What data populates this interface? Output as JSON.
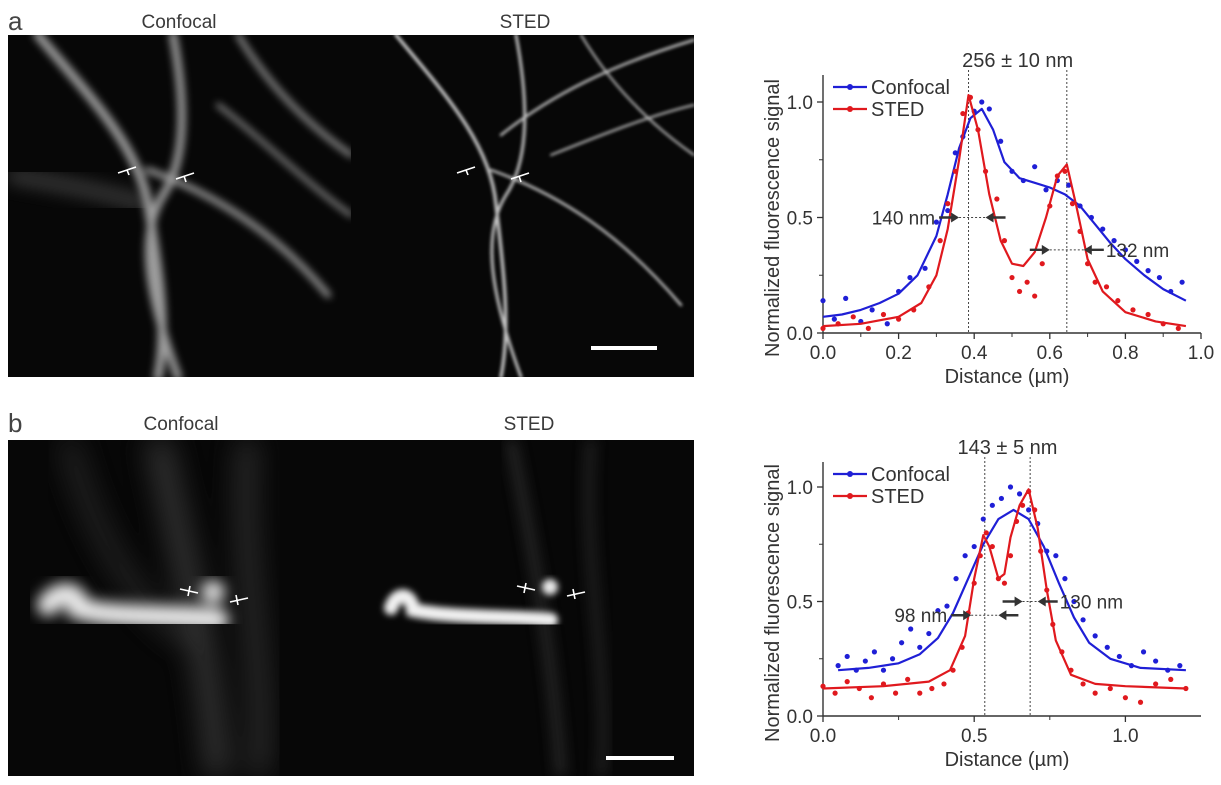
{
  "figure": {
    "panels": [
      {
        "letter": "a",
        "left_title": "Confocal",
        "right_title": "STED"
      },
      {
        "letter": "b",
        "left_title": "Confocal",
        "right_title": "STED"
      }
    ]
  },
  "chart_data": [
    {
      "type": "line",
      "panel": "a",
      "xlabel": "Distance (µm)",
      "ylabel": "Normalized fluorescence signal",
      "xlim": [
        0.0,
        1.0
      ],
      "ylim": [
        0.0,
        1.08
      ],
      "xticks": [
        "0.0",
        "0.2",
        "0.4",
        "0.6",
        "0.8",
        "1.0"
      ],
      "xtick_values": [
        0.0,
        0.2,
        0.4,
        0.6,
        0.8,
        1.0
      ],
      "yticks": [
        "0.0",
        "0.5",
        "1.0"
      ],
      "ytick_values": [
        0.0,
        0.5,
        1.0
      ],
      "legend_position": "top-left",
      "series": [
        {
          "name": "Confocal",
          "color": "#1f1fd6",
          "fit_x": [
            0.0,
            0.05,
            0.1,
            0.15,
            0.2,
            0.25,
            0.3,
            0.33,
            0.36,
            0.39,
            0.42,
            0.45,
            0.48,
            0.52,
            0.56,
            0.6,
            0.64,
            0.68,
            0.72,
            0.76,
            0.8,
            0.85,
            0.9,
            0.96
          ],
          "fit_y": [
            0.07,
            0.08,
            0.1,
            0.13,
            0.17,
            0.25,
            0.42,
            0.6,
            0.8,
            0.93,
            0.97,
            0.88,
            0.74,
            0.67,
            0.65,
            0.63,
            0.6,
            0.55,
            0.47,
            0.39,
            0.32,
            0.25,
            0.19,
            0.14
          ],
          "points_x": [
            0.0,
            0.03,
            0.06,
            0.1,
            0.13,
            0.17,
            0.2,
            0.23,
            0.27,
            0.3,
            0.33,
            0.35,
            0.37,
            0.4,
            0.42,
            0.44,
            0.47,
            0.5,
            0.53,
            0.56,
            0.59,
            0.62,
            0.65,
            0.68,
            0.71,
            0.74,
            0.77,
            0.8,
            0.83,
            0.86,
            0.89,
            0.92,
            0.95
          ],
          "points_y": [
            0.14,
            0.06,
            0.15,
            0.05,
            0.1,
            0.04,
            0.18,
            0.24,
            0.28,
            0.48,
            0.53,
            0.78,
            0.85,
            0.96,
            1.0,
            0.97,
            0.83,
            0.7,
            0.66,
            0.72,
            0.62,
            0.66,
            0.64,
            0.55,
            0.5,
            0.45,
            0.4,
            0.36,
            0.31,
            0.27,
            0.24,
            0.18,
            0.22
          ]
        },
        {
          "name": "STED",
          "color": "#e0191e",
          "fit_x": [
            0.0,
            0.1,
            0.2,
            0.26,
            0.3,
            0.33,
            0.36,
            0.385,
            0.41,
            0.44,
            0.47,
            0.5,
            0.53,
            0.56,
            0.59,
            0.62,
            0.645,
            0.67,
            0.7,
            0.74,
            0.8,
            0.88,
            0.96
          ],
          "fit_y": [
            0.03,
            0.04,
            0.07,
            0.13,
            0.25,
            0.45,
            0.75,
            1.03,
            0.88,
            0.6,
            0.4,
            0.3,
            0.29,
            0.35,
            0.5,
            0.68,
            0.73,
            0.55,
            0.32,
            0.18,
            0.09,
            0.05,
            0.03
          ],
          "points_x": [
            0.0,
            0.04,
            0.08,
            0.12,
            0.16,
            0.2,
            0.24,
            0.28,
            0.31,
            0.33,
            0.35,
            0.37,
            0.39,
            0.41,
            0.43,
            0.46,
            0.48,
            0.5,
            0.52,
            0.54,
            0.56,
            0.58,
            0.6,
            0.62,
            0.64,
            0.66,
            0.68,
            0.7,
            0.72,
            0.75,
            0.78,
            0.82,
            0.86,
            0.9,
            0.94
          ],
          "points_y": [
            0.02,
            0.04,
            0.07,
            0.02,
            0.08,
            0.06,
            0.1,
            0.2,
            0.4,
            0.56,
            0.7,
            0.95,
            1.02,
            0.88,
            0.7,
            0.58,
            0.4,
            0.24,
            0.18,
            0.22,
            0.16,
            0.3,
            0.55,
            0.68,
            0.7,
            0.56,
            0.44,
            0.3,
            0.22,
            0.2,
            0.14,
            0.1,
            0.08,
            0.04,
            0.02
          ]
        }
      ],
      "vlines": [
        0.385,
        0.645
      ],
      "top_annotation": "256 ± 10 nm",
      "fwhm_annotations": [
        {
          "label": "140 nm",
          "y": 0.5,
          "x_left": 0.36,
          "x_right": 0.43
        },
        {
          "label": "132 nm",
          "y": 0.36,
          "x_left": 0.6,
          "x_right": 0.69
        }
      ]
    },
    {
      "type": "line",
      "panel": "b",
      "xlabel": "Distance (µm)",
      "ylabel": "Normalized fluorescence signal",
      "xlim": [
        0.0,
        1.25
      ],
      "ylim": [
        0.0,
        1.08
      ],
      "xticks": [
        "0.0",
        "0.5",
        "1.0"
      ],
      "xtick_values": [
        0.0,
        0.5,
        1.0
      ],
      "yticks": [
        "0.0",
        "0.5",
        "1.0"
      ],
      "ytick_values": [
        0.0,
        0.5,
        1.0
      ],
      "legend_position": "top-left",
      "series": [
        {
          "name": "Confocal",
          "color": "#1f1fd6",
          "fit_x": [
            0.05,
            0.15,
            0.25,
            0.32,
            0.38,
            0.43,
            0.48,
            0.53,
            0.58,
            0.63,
            0.68,
            0.73,
            0.78,
            0.83,
            0.88,
            0.95,
            1.05,
            1.2
          ],
          "fit_y": [
            0.2,
            0.21,
            0.23,
            0.27,
            0.34,
            0.45,
            0.6,
            0.75,
            0.86,
            0.9,
            0.86,
            0.74,
            0.58,
            0.43,
            0.32,
            0.25,
            0.21,
            0.2
          ],
          "points_x": [
            0.05,
            0.08,
            0.11,
            0.14,
            0.17,
            0.2,
            0.23,
            0.26,
            0.29,
            0.32,
            0.35,
            0.38,
            0.41,
            0.44,
            0.47,
            0.5,
            0.53,
            0.56,
            0.59,
            0.62,
            0.65,
            0.68,
            0.71,
            0.74,
            0.77,
            0.8,
            0.83,
            0.86,
            0.9,
            0.94,
            0.98,
            1.02,
            1.06,
            1.1,
            1.14,
            1.18
          ],
          "points_y": [
            0.22,
            0.26,
            0.2,
            0.24,
            0.28,
            0.2,
            0.25,
            0.32,
            0.38,
            0.3,
            0.36,
            0.46,
            0.48,
            0.6,
            0.7,
            0.74,
            0.86,
            0.92,
            0.95,
            1.0,
            0.97,
            0.9,
            0.84,
            0.72,
            0.7,
            0.6,
            0.5,
            0.42,
            0.35,
            0.3,
            0.26,
            0.22,
            0.28,
            0.24,
            0.2,
            0.22
          ]
        },
        {
          "name": "STED",
          "color": "#e0191e",
          "fit_x": [
            0.0,
            0.2,
            0.35,
            0.42,
            0.47,
            0.5,
            0.53,
            0.55,
            0.58,
            0.6,
            0.62,
            0.65,
            0.68,
            0.71,
            0.74,
            0.77,
            0.82,
            0.9,
            1.0,
            1.2
          ],
          "fit_y": [
            0.12,
            0.13,
            0.15,
            0.2,
            0.35,
            0.6,
            0.79,
            0.74,
            0.6,
            0.62,
            0.78,
            0.92,
            0.99,
            0.82,
            0.55,
            0.33,
            0.18,
            0.14,
            0.13,
            0.12
          ],
          "points_x": [
            0.0,
            0.04,
            0.08,
            0.12,
            0.16,
            0.2,
            0.24,
            0.28,
            0.32,
            0.36,
            0.4,
            0.43,
            0.46,
            0.48,
            0.5,
            0.52,
            0.54,
            0.56,
            0.58,
            0.6,
            0.62,
            0.64,
            0.66,
            0.68,
            0.7,
            0.72,
            0.74,
            0.76,
            0.79,
            0.82,
            0.86,
            0.9,
            0.95,
            1.0,
            1.05,
            1.1,
            1.15,
            1.2
          ],
          "points_y": [
            0.13,
            0.1,
            0.15,
            0.12,
            0.08,
            0.14,
            0.1,
            0.16,
            0.1,
            0.12,
            0.14,
            0.2,
            0.3,
            0.45,
            0.58,
            0.7,
            0.8,
            0.74,
            0.6,
            0.58,
            0.7,
            0.85,
            0.92,
            0.98,
            0.9,
            0.72,
            0.55,
            0.4,
            0.28,
            0.2,
            0.14,
            0.1,
            0.12,
            0.08,
            0.06,
            0.14,
            0.16,
            0.12
          ]
        }
      ],
      "vlines": [
        0.535,
        0.685
      ],
      "top_annotation": "143 ± 5 nm",
      "fwhm_annotations": [
        {
          "label": "98 nm",
          "y": 0.44,
          "x_left": 0.49,
          "x_right": 0.58
        },
        {
          "label": "130 nm",
          "y": 0.5,
          "x_left": 0.66,
          "x_right": 0.71
        }
      ]
    }
  ]
}
